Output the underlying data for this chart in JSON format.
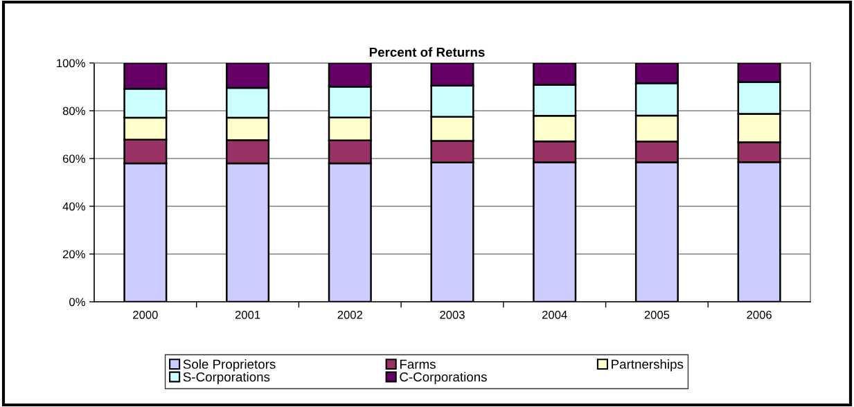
{
  "chart_data": {
    "type": "bar",
    "title": "Percent of Returns",
    "categories": [
      "2000",
      "2001",
      "2002",
      "2003",
      "2004",
      "2005",
      "2006"
    ],
    "series": [
      {
        "name": "Sole Proprietors",
        "color": "#ccccff",
        "values": [
          58.0,
          58.0,
          58.0,
          58.3,
          58.4,
          58.4,
          58.5
        ]
      },
      {
        "name": "Farms",
        "color": "#993366",
        "values": [
          9.9,
          9.7,
          9.6,
          9.1,
          8.8,
          8.7,
          8.3
        ]
      },
      {
        "name": "Partnerships",
        "color": "#ffffcc",
        "values": [
          9.2,
          9.4,
          9.6,
          10.1,
          10.7,
          10.9,
          11.9
        ]
      },
      {
        "name": "S-Corporations",
        "color": "#ccffff",
        "values": [
          12.1,
          12.5,
          12.9,
          13.0,
          13.0,
          13.5,
          13.3
        ]
      },
      {
        "name": "C-Corporations",
        "color": "#660066",
        "values": [
          10.8,
          10.4,
          9.9,
          9.5,
          9.1,
          8.5,
          8.0
        ]
      }
    ],
    "stacked": true,
    "ylim": [
      0,
      100
    ],
    "yticks": [
      {
        "value": 0,
        "label": "0%"
      },
      {
        "value": 20,
        "label": "20%"
      },
      {
        "value": 40,
        "label": "40%"
      },
      {
        "value": 60,
        "label": "60%"
      },
      {
        "value": 80,
        "label": "80%"
      },
      {
        "value": 100,
        "label": "100%"
      }
    ],
    "grid": "y",
    "legend": "bottom"
  }
}
